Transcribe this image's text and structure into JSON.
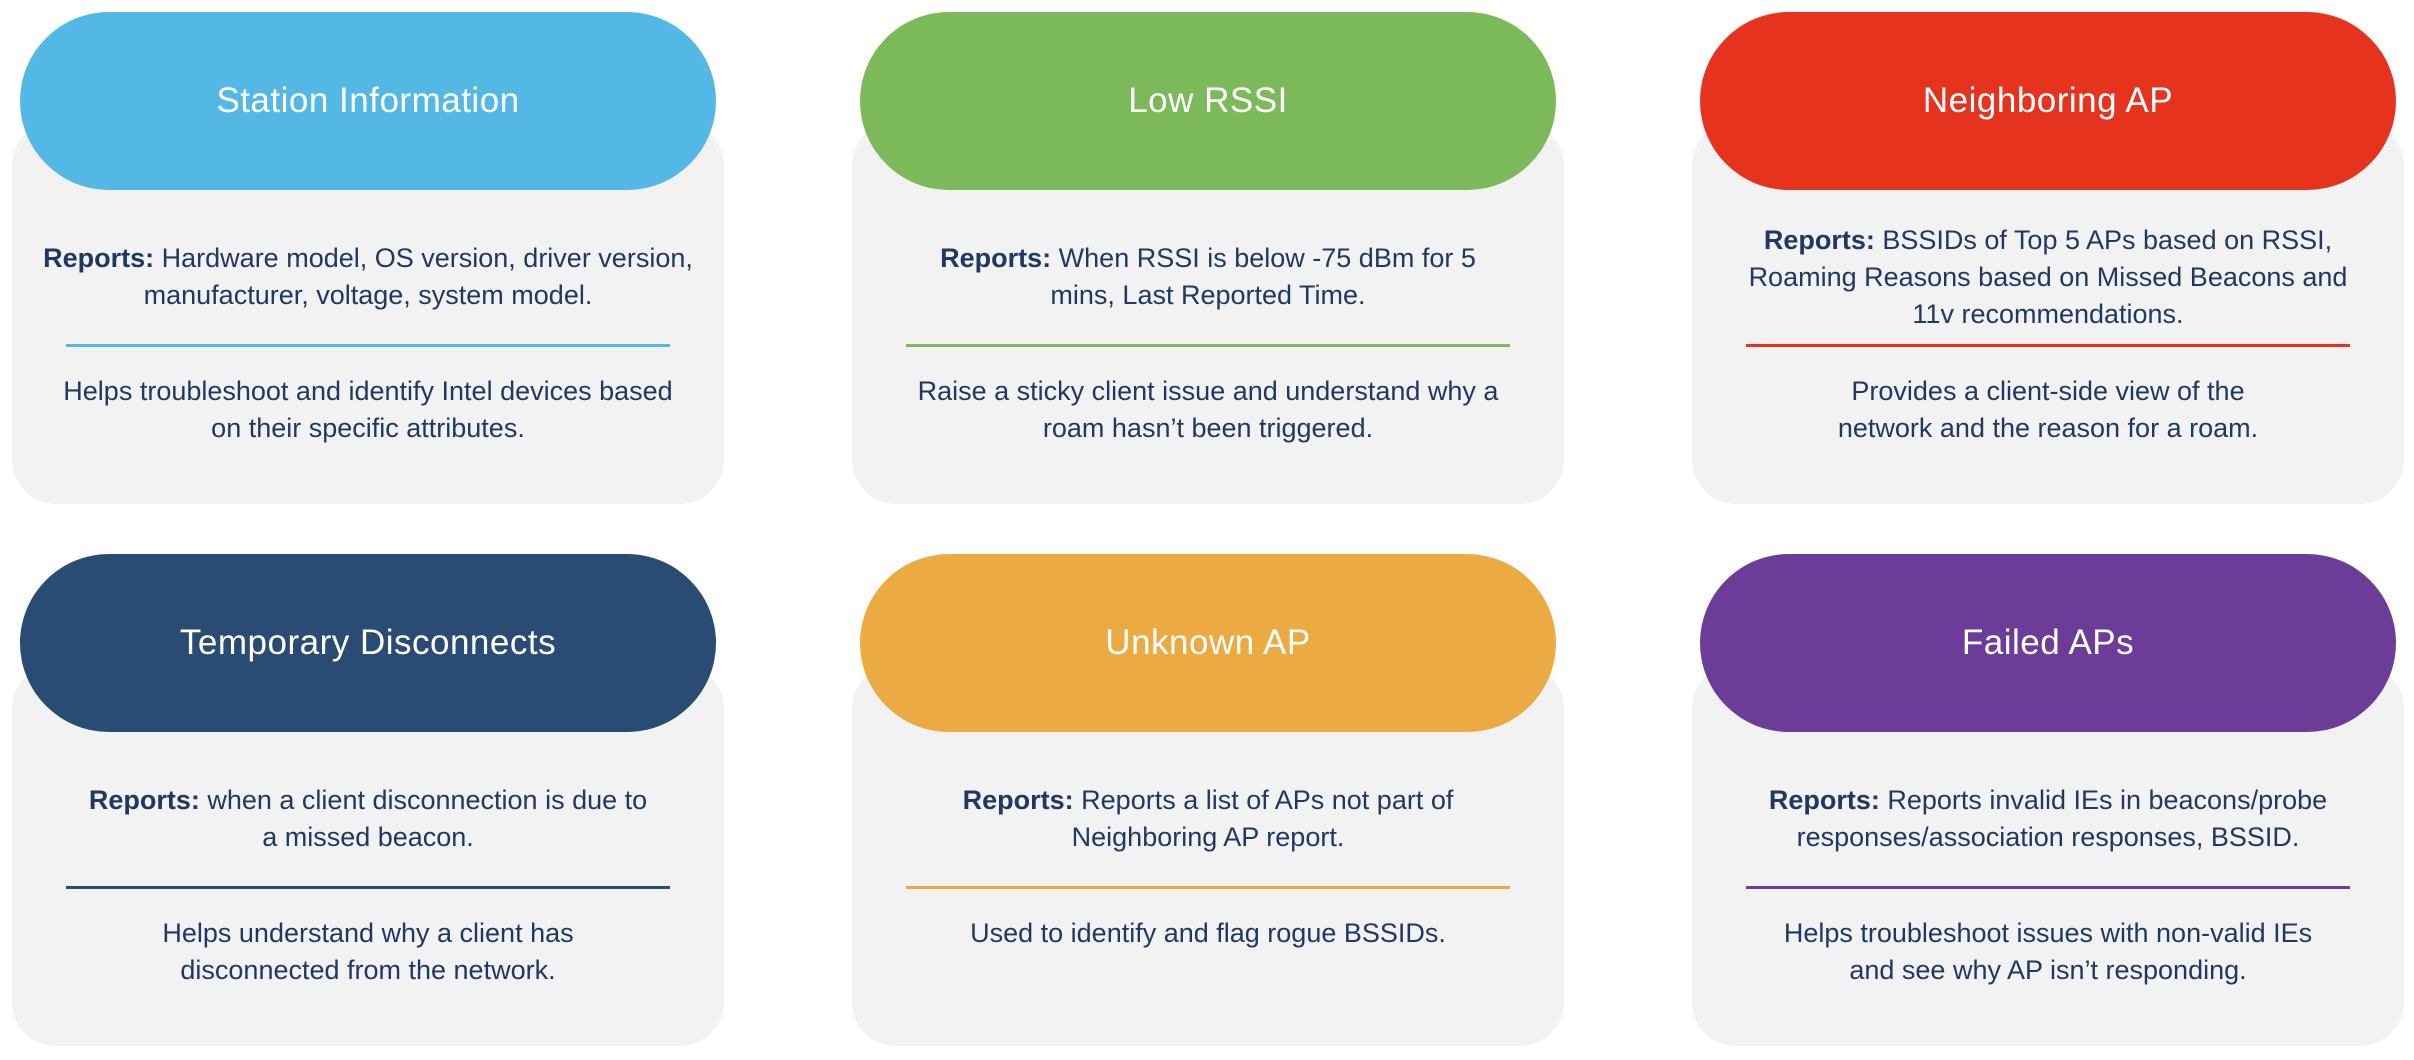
{
  "page": {
    "background": "#FFFFFF",
    "card_body_color": "#F2F2F2",
    "text_color": "#1F3864"
  },
  "cards": [
    {
      "id": "station-information",
      "title": "Station Information",
      "color": "#54B8E4",
      "reports_label": "Reports:",
      "reports_text": " Hardware model, OS version, driver version, manufacturer, voltage, system model.",
      "description": "Helps troubleshoot and identify Intel devices based on their specific attributes."
    },
    {
      "id": "low-rssi",
      "title": "Low RSSI",
      "color": "#7CB95B",
      "reports_label": "Reports:",
      "reports_text": " When RSSI is below -75 dBm for 5 mins, Last Reported Time.",
      "description": "Raise a sticky client issue and understand why a roam hasn’t been triggered."
    },
    {
      "id": "neighboring-ap",
      "title": "Neighboring AP",
      "color": "#E6331E",
      "reports_label": "Reports:",
      "reports_text": " BSSIDs of Top 5 APs based on RSSI, Roaming Reasons based on Missed Beacons and 11v recommendations.",
      "description": "Provides a client-side view of the network and the reason for a roam."
    },
    {
      "id": "temporary-disconnects",
      "title": "Temporary Disconnects",
      "color": "#2A4B73",
      "reports_label": "Reports:",
      "reports_text": " when a client disconnection is due to a missed beacon.",
      "description": "Helps understand why a client has disconnected from the network."
    },
    {
      "id": "unknown-ap",
      "title": "Unknown AP",
      "color": "#ECAA42",
      "reports_label": "Reports:",
      "reports_text": " Reports a list of APs not part of Neighboring AP report.",
      "description": "Used to identify and flag rogue BSSIDs."
    },
    {
      "id": "failed-aps",
      "title": "Failed APs",
      "color": "#6C3D98",
      "reports_label": "Reports:",
      "reports_text": " Reports invalid IEs in beacons/probe responses/association responses, BSSID.",
      "description": "Helps troubleshoot issues with non-valid IEs and see why AP isn’t responding."
    }
  ]
}
